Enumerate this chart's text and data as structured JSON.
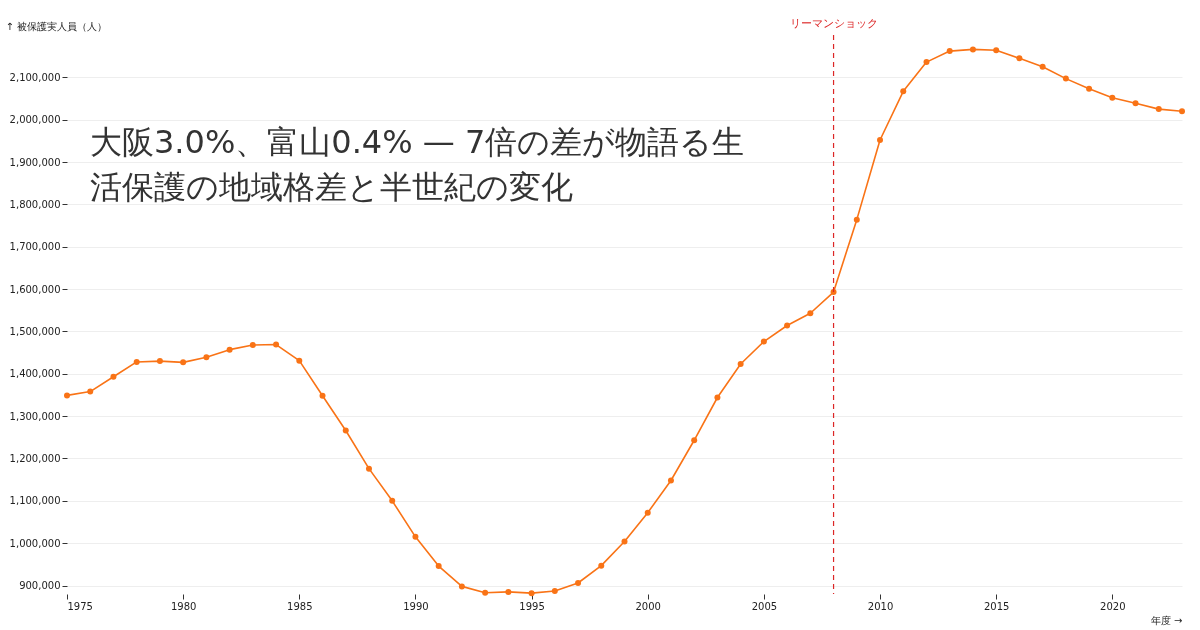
{
  "chart_data": {
    "type": "line",
    "title": "大阪3.0%、富山0.4% — 7倍の差が物語る生活保護の地域格差と半世紀の変化",
    "xlabel": "年度 →",
    "ylabel": "↑ 被保護実人員（人）",
    "x": [
      1975,
      1976,
      1977,
      1978,
      1979,
      1980,
      1981,
      1982,
      1983,
      1984,
      1985,
      1986,
      1987,
      1988,
      1989,
      1990,
      1991,
      1992,
      1993,
      1994,
      1995,
      1996,
      1997,
      1998,
      1999,
      2000,
      2001,
      2002,
      2003,
      2004,
      2005,
      2006,
      2007,
      2008,
      2009,
      2010,
      2011,
      2012,
      2013,
      2014,
      2015,
      2016,
      2017,
      2018,
      2019,
      2020,
      2021,
      2022,
      2023
    ],
    "series": [
      {
        "color": "#f97316",
        "values": [
          1349000,
          1358000,
          1393000,
          1428000,
          1430000,
          1427000,
          1439000,
          1457000,
          1468000,
          1469000,
          1431000,
          1348000,
          1266000,
          1176000,
          1100000,
          1015000,
          946000,
          898000,
          883000,
          885000,
          882000,
          887000,
          906000,
          947000,
          1004000,
          1072000,
          1148000,
          1243000,
          1344000,
          1423000,
          1476000,
          1514000,
          1543000,
          1593000,
          1764000,
          1952000,
          2067000,
          2136000,
          2162000,
          2166000,
          2164000,
          2145000,
          2125000,
          2097000,
          2073000,
          2052000,
          2039000,
          2025000,
          2020000
        ]
      }
    ],
    "xlim": [
      1975,
      2023
    ],
    "xticks": [
      1975,
      1980,
      1985,
      1990,
      1995,
      2000,
      2005,
      2010,
      2015,
      2020
    ],
    "ylim": [
      880000,
      2200000
    ],
    "yticks": [
      {
        "value": 900000,
        "label": "900,000"
      },
      {
        "value": 1000000,
        "label": "1,000,000"
      },
      {
        "value": 1100000,
        "label": "1,100,000"
      },
      {
        "value": 1200000,
        "label": "1,200,000"
      },
      {
        "value": 1300000,
        "label": "1,300,000"
      },
      {
        "value": 1400000,
        "label": "1,400,000"
      },
      {
        "value": 1500000,
        "label": "1,500,000"
      },
      {
        "value": 1600000,
        "label": "1,600,000"
      },
      {
        "value": 1700000,
        "label": "1,700,000"
      },
      {
        "value": 1800000,
        "label": "1,800,000"
      },
      {
        "value": 1900000,
        "label": "1,900,000"
      },
      {
        "value": 2000000,
        "label": "2,000,000"
      },
      {
        "value": 2100000,
        "label": "2,100,000"
      }
    ],
    "grid": "y",
    "marker": "circle",
    "line_style": "solid",
    "ref_lines": [
      {
        "axis": "x",
        "value": 2008,
        "label": "リーマンショック",
        "color": "#dc2626",
        "line_style": "dashed"
      }
    ]
  }
}
